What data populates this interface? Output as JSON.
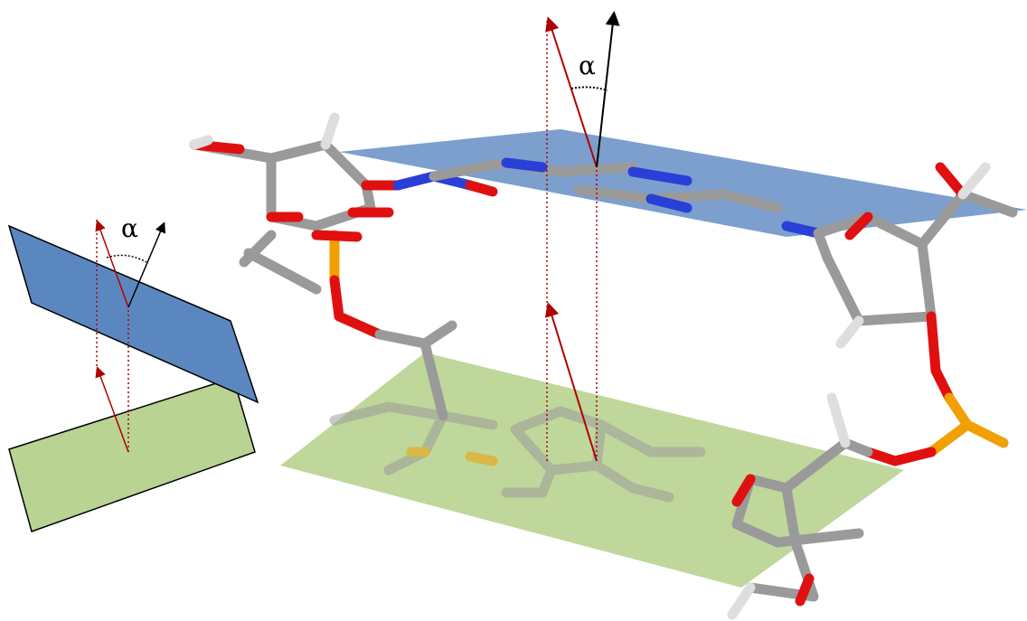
{
  "schematic": {
    "angle_label": "α"
  },
  "molecule_view": {
    "angle_label": "α"
  }
}
